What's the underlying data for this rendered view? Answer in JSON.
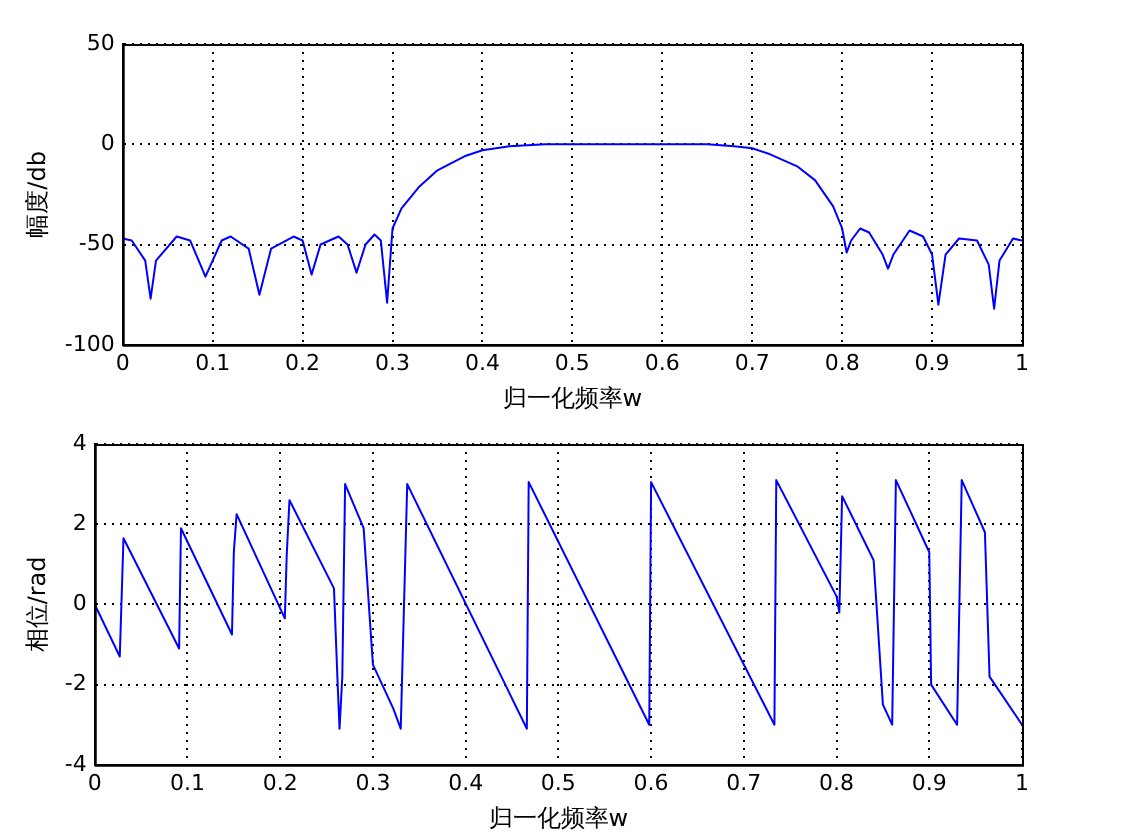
{
  "chart_data": [
    {
      "type": "line",
      "xlabel": "归一化频率w",
      "ylabel": "幅度/db",
      "xlim": [
        0,
        1
      ],
      "ylim": [
        -100,
        50
      ],
      "xticks": [
        0,
        0.1,
        0.2,
        0.3,
        0.4,
        0.5,
        0.6,
        0.7,
        0.8,
        0.9,
        1
      ],
      "yticks": [
        -100,
        -50,
        0,
        50
      ],
      "grid": true,
      "legend": false,
      "marker": "none",
      "line_style": "solid",
      "series": [
        {
          "color": "#0000ff",
          "x": [
            0,
            0.01,
            0.025,
            0.031,
            0.037,
            0.06,
            0.075,
            0.092,
            0.11,
            0.12,
            0.14,
            0.152,
            0.165,
            0.19,
            0.2,
            0.21,
            0.22,
            0.24,
            0.25,
            0.26,
            0.27,
            0.28,
            0.287,
            0.294,
            0.3,
            0.31,
            0.33,
            0.35,
            0.38,
            0.4,
            0.43,
            0.47,
            0.5,
            0.55,
            0.6,
            0.65,
            0.68,
            0.7,
            0.72,
            0.75,
            0.77,
            0.79,
            0.8,
            0.805,
            0.81,
            0.82,
            0.83,
            0.845,
            0.851,
            0.857,
            0.875,
            0.89,
            0.9,
            0.907,
            0.915,
            0.93,
            0.95,
            0.963,
            0.969,
            0.975,
            0.99,
            1
          ],
          "values": [
            -47,
            -48,
            -58,
            -77,
            -58,
            -46,
            -48,
            -66,
            -48,
            -46,
            -52,
            -75,
            -52,
            -46,
            -48,
            -65,
            -50,
            -46,
            -50,
            -64,
            -50,
            -45,
            -48,
            -79,
            -42,
            -32,
            -21,
            -13,
            -6,
            -3,
            -1,
            0,
            0,
            0,
            0,
            0,
            -1,
            -2,
            -5,
            -11,
            -18,
            -31,
            -42,
            -54,
            -48,
            -42,
            -44,
            -55,
            -62,
            -55,
            -43,
            -46,
            -55,
            -80,
            -55,
            -47,
            -48,
            -60,
            -82,
            -58,
            -47,
            -48
          ]
        }
      ]
    },
    {
      "type": "line",
      "xlabel": "归一化频率w",
      "ylabel": "相位/rad",
      "xlim": [
        0,
        1
      ],
      "ylim": [
        -4,
        4
      ],
      "xticks": [
        0,
        0.1,
        0.2,
        0.3,
        0.4,
        0.5,
        0.6,
        0.7,
        0.8,
        0.9,
        1
      ],
      "yticks": [
        -4,
        -2,
        0,
        2,
        4
      ],
      "grid": true,
      "legend": false,
      "marker": "none",
      "line_style": "solid",
      "series": [
        {
          "color": "#0000ff",
          "x": [
            0,
            0.027,
            0.031,
            0.091,
            0.093,
            0.148,
            0.15,
            0.153,
            0.205,
            0.207,
            0.21,
            0.258,
            0.262,
            0.264,
            0.267,
            0.27,
            0.29,
            0.3,
            0.322,
            0.33,
            0.337,
            0.466,
            0.468,
            0.598,
            0.6,
            0.733,
            0.735,
            0.8,
            0.803,
            0.806,
            0.84,
            0.85,
            0.86,
            0.864,
            0.9,
            0.902,
            0.93,
            0.935,
            0.96,
            0.965,
            1
          ],
          "values": [
            0,
            -1.3,
            1.65,
            -1.1,
            1.9,
            -0.75,
            1.3,
            2.25,
            -0.35,
            1.2,
            2.6,
            0.4,
            -2.0,
            -3.1,
            -1.8,
            3.0,
            1.9,
            -1.5,
            -2.6,
            -3.1,
            3.0,
            -3.1,
            3.05,
            -3.0,
            3.05,
            -3.0,
            3.1,
            0.2,
            -0.2,
            2.7,
            1.1,
            -2.5,
            -3.0,
            3.1,
            1.3,
            -2.0,
            -3.0,
            3.1,
            1.8,
            -1.8,
            -3.0
          ]
        }
      ]
    }
  ]
}
